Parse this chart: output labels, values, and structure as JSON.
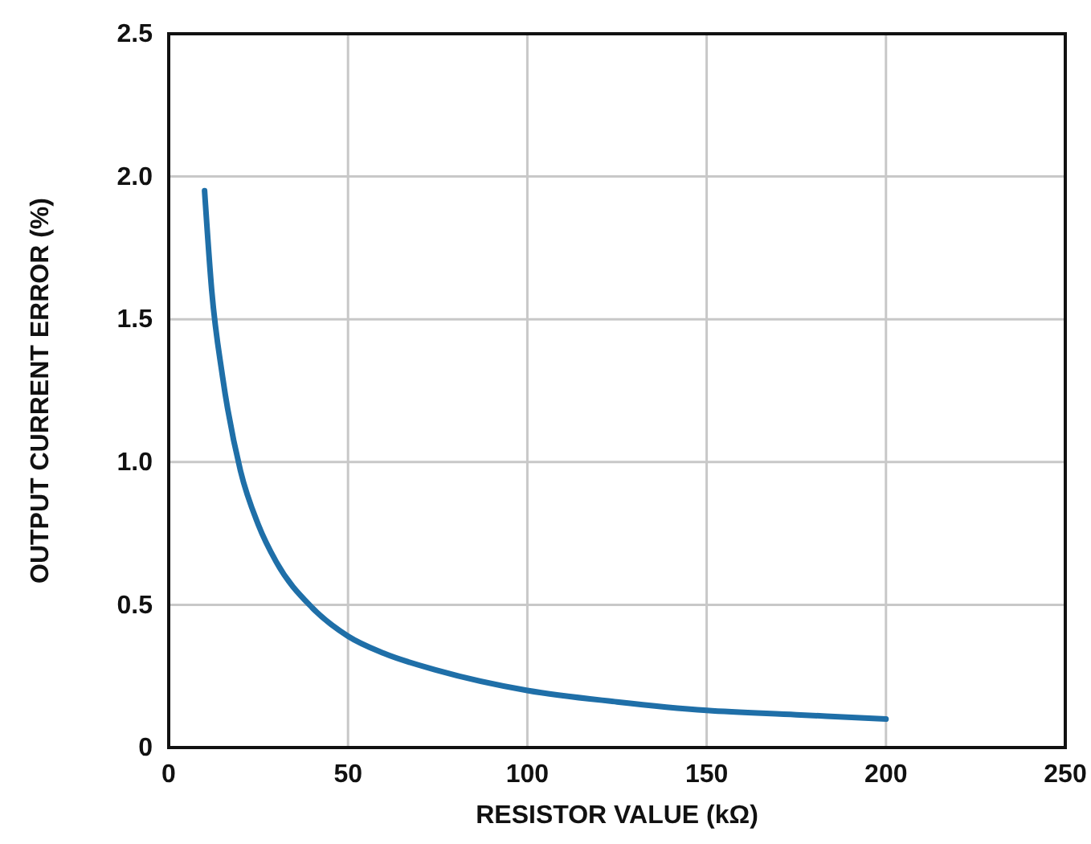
{
  "chart_data": {
    "type": "line",
    "xlabel": "RESISTOR VALUE (kΩ)",
    "ylabel": "OUTPUT CURRENT ERROR (%)",
    "x": [
      10,
      12,
      15,
      20,
      25,
      30,
      40,
      50,
      60,
      75,
      100,
      125,
      150,
      175,
      200
    ],
    "series": [
      {
        "color": "#1f6fa8",
        "values": [
          1.95,
          1.6,
          1.3,
          0.97,
          0.78,
          0.65,
          0.49,
          0.39,
          0.33,
          0.27,
          0.2,
          0.16,
          0.13,
          0.115,
          0.1
        ]
      }
    ],
    "xlim": [
      0,
      250
    ],
    "xticks": [
      0,
      50,
      100,
      150,
      200,
      250
    ],
    "ylim": [
      0,
      2.5
    ],
    "yticks": [
      0,
      0.5,
      {
        "value": 1,
        "label": "1.0"
      },
      1.5,
      {
        "value": 2,
        "label": "2.0"
      },
      2.5
    ],
    "grid": true,
    "marker": "none",
    "line_style": "solid"
  }
}
